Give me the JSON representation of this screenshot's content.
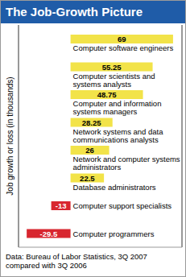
{
  "chart_data": {
    "type": "bar",
    "orientation": "horizontal",
    "title": "The Job-Growth Picture",
    "ylabel": "Job growth or loss (in thousands)",
    "source": "Data: Bureau of Labor Statistics, 3Q 2007 compared with 3Q 2006",
    "categories": [
      "Computer software engineers",
      "Computer scientists and systems analysts",
      "Computer and information systems managers",
      "Network systems and data communications analysts",
      "Network and computer systems administrators",
      "Database administrators",
      "Computer support specialists",
      "Computer programmers"
    ],
    "values": [
      69,
      55.25,
      48.75,
      28.25,
      26,
      22.5,
      -13,
      -29.5
    ],
    "colors": [
      "#f2e349",
      "#f2e349",
      "#f2e349",
      "#f2e349",
      "#f2e349",
      "#f2e349",
      "#d8262f",
      "#d8262f"
    ],
    "xlim": [
      -35,
      75
    ],
    "xticks": [
      0
    ],
    "grid": true,
    "data_labels": true,
    "tick_labels": false
  }
}
